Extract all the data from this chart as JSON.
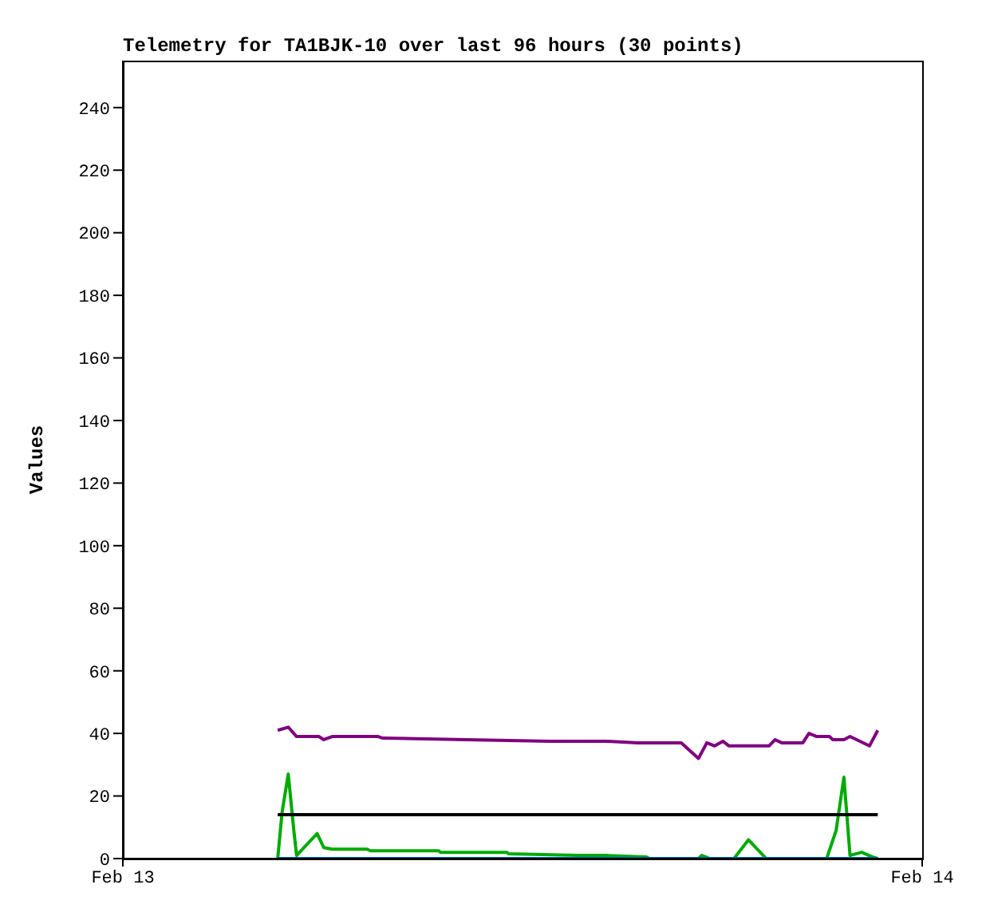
{
  "chart_data": {
    "type": "line",
    "title": "Telemetry for TA1BJK-10 over last 96 hours (30 points)",
    "ylabel": "Values",
    "xlim": [
      "--02-13",
      "--02-14"
    ],
    "xticks": [
      {
        "value": "--02-13",
        "label": "Feb 13"
      },
      {
        "value": "--02-14",
        "label": "Feb 14"
      }
    ],
    "ylim": [
      0,
      255
    ],
    "yticks": [
      0,
      20,
      40,
      60,
      80,
      100,
      120,
      140,
      160,
      180,
      200,
      220,
      240
    ],
    "grid": false,
    "legend": false,
    "marker": "none",
    "series": [
      {
        "color": "#7f007f",
        "x": [
          "--02-13T04:39",
          "--02-13T04:58",
          "--02-13T05:13",
          "--02-13T05:53",
          "--02-13T06:02",
          "--02-13T06:17",
          "--02-13T07:40",
          "--02-13T07:48",
          "--02-13T10:18",
          "--02-13T12:50",
          "--02-13T14:31",
          "--02-13T15:28",
          "--02-13T16:46",
          "--02-13T17:17",
          "--02-13T17:32",
          "--02-13T17:46",
          "--02-13T18:01",
          "--02-13T18:12",
          "--02-13T19:24",
          "--02-13T19:35",
          "--02-13T19:47",
          "--02-13T20:25",
          "--02-13T20:36",
          "--02-13T20:50",
          "--02-13T21:13",
          "--02-13T21:19",
          "--02-13T21:39",
          "--02-13T21:50",
          "--02-13T22:25",
          "--02-13T22:40"
        ],
        "values": [
          41,
          42,
          39,
          39,
          38,
          39,
          39,
          38.5,
          38,
          37.5,
          37.5,
          37,
          37,
          32,
          37,
          36,
          37.5,
          36,
          36,
          38,
          37,
          37,
          40,
          39,
          39,
          38,
          38,
          39,
          36,
          41
        ]
      },
      {
        "color": "#00aa00",
        "x": [
          "--02-13T04:39",
          "--02-13T04:47",
          "--02-13T04:58",
          "--02-13T05:08",
          "--02-13T05:13",
          "--02-13T05:50",
          "--02-13T06:02",
          "--02-13T06:17",
          "--02-13T07:20",
          "--02-13T07:26",
          "--02-13T09:29",
          "--02-13T09:32",
          "--02-13T11:32",
          "--02-13T11:35",
          "--02-13T13:39",
          "--02-13T14:31",
          "--02-13T15:43",
          "--02-13T15:49",
          "--02-13T17:17",
          "--02-13T17:23",
          "--02-13T17:38",
          "--02-13T18:21",
          "--02-13T18:47",
          "--02-13T19:19",
          "--02-13T21:08",
          "--02-13T21:25",
          "--02-13T21:39",
          "--02-13T21:50",
          "--02-13T22:11",
          "--02-13T22:31",
          "--02-13T22:40"
        ],
        "values": [
          0,
          15,
          27,
          9,
          1,
          8,
          3.5,
          3,
          3,
          2.5,
          2.5,
          2,
          2,
          1.5,
          1,
          1,
          0.5,
          0,
          0,
          1,
          0,
          0,
          6,
          0,
          0,
          9,
          26,
          1,
          2,
          0.5,
          0
        ]
      },
      {
        "color": "#000000",
        "x": [
          "--02-13T04:39",
          "--02-13T22:40"
        ],
        "values": [
          14,
          14
        ]
      },
      {
        "color": "#0066cc",
        "x": [
          "--02-13T04:39",
          "--02-13T22:40"
        ],
        "values": [
          0,
          0
        ]
      }
    ]
  }
}
